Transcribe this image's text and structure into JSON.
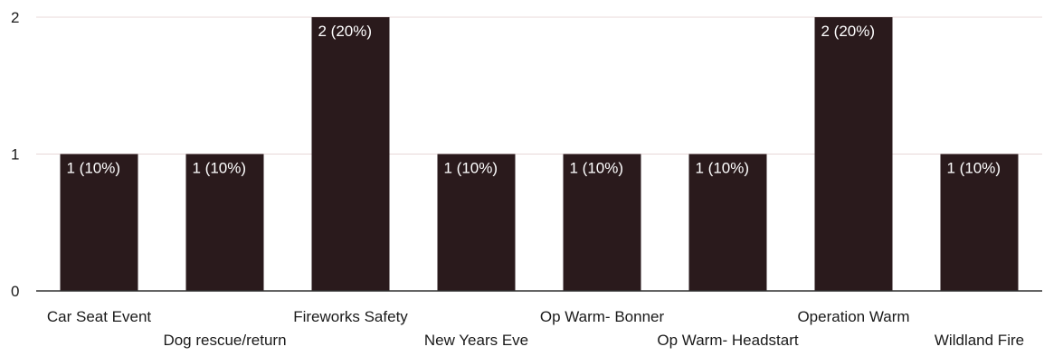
{
  "chart_data": {
    "type": "bar",
    "categories": [
      "Car Seat Event",
      "Dog rescue/return",
      "Fireworks Safety",
      "New Years Eve",
      "Op Warm- Bonner",
      "Op Warm- Headstart",
      "Operation Warm",
      "Wildland Fire"
    ],
    "values": [
      1,
      1,
      2,
      1,
      1,
      1,
      2,
      1
    ],
    "data_labels": [
      "1 (10%)",
      "1 (10%)",
      "2 (20%)",
      "1 (10%)",
      "1 (10%)",
      "1 (10%)",
      "2 (20%)",
      "1 (10%)"
    ],
    "yticks": [
      0,
      1,
      2
    ],
    "ylim": [
      0,
      2
    ],
    "grid": true,
    "legend": "none",
    "colors": {
      "bar": "#2a1a1c",
      "axis": "#333333",
      "grid": "#e8d8d8",
      "label_text": "#ffffff"
    }
  }
}
